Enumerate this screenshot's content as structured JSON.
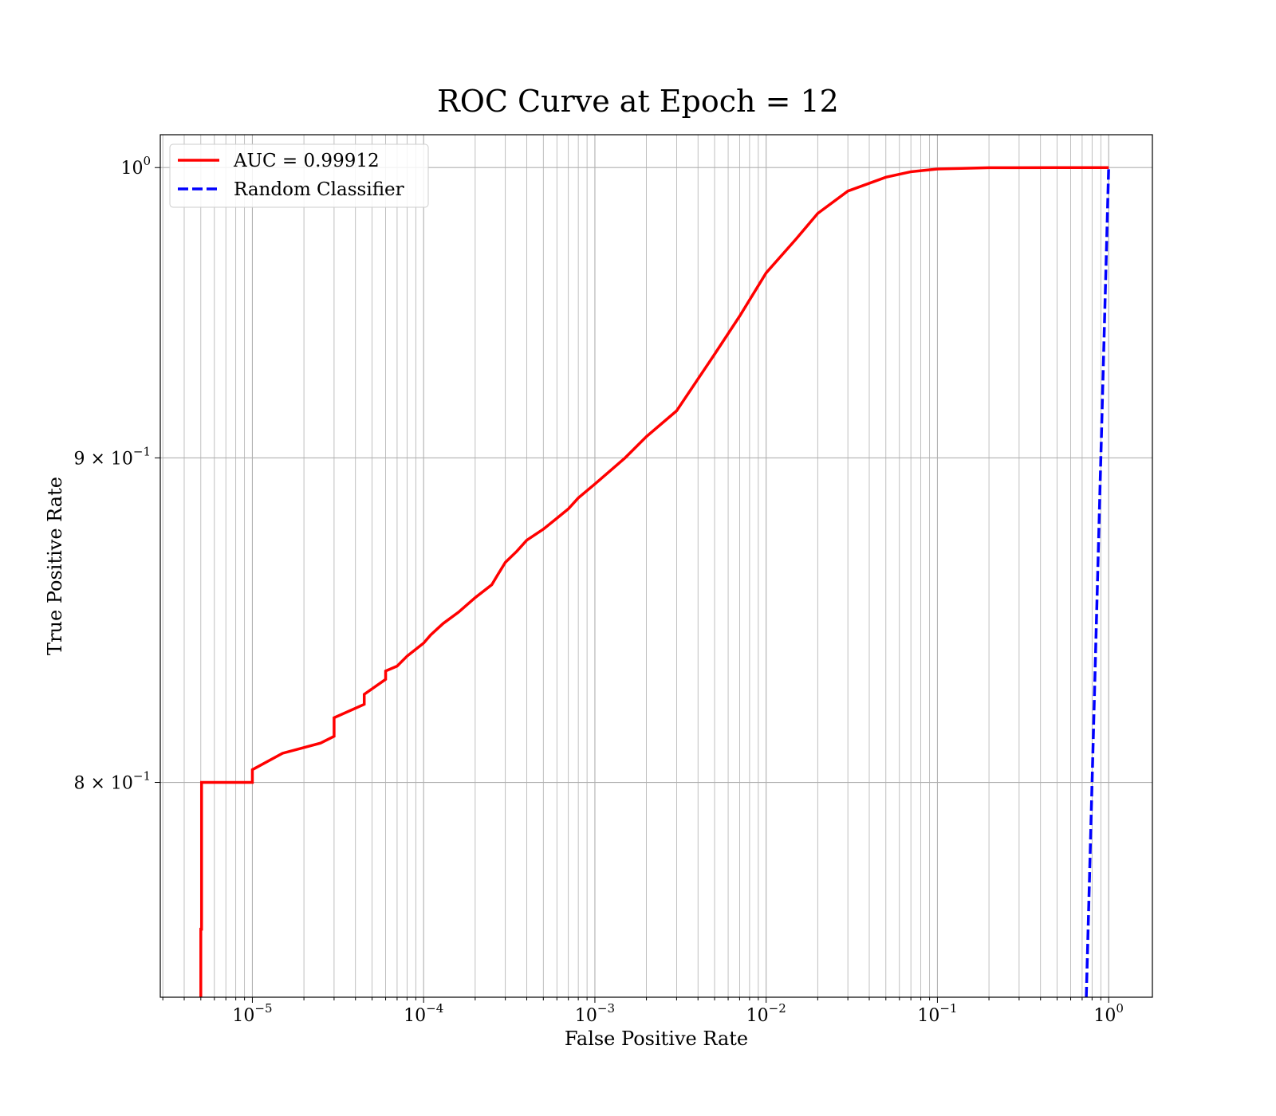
{
  "chart_data": {
    "type": "line",
    "title": "ROC Curve at Epoch = 12",
    "xlabel": "False Positive Rate",
    "ylabel": "True Positive Rate",
    "xscale": "log",
    "yscale": "log",
    "xlim": [
      2.9e-06,
      1.8
    ],
    "ylim": [
      0.74,
      1.012
    ],
    "grid": "on (major and minor)",
    "legend_position": "upper-left",
    "x_tick_labels": [
      {
        "base": "10",
        "exp": "−5",
        "value": 1e-05
      },
      {
        "base": "10",
        "exp": "−4",
        "value": 0.0001
      },
      {
        "base": "10",
        "exp": "−3",
        "value": 0.001
      },
      {
        "base": "10",
        "exp": "−2",
        "value": 0.01
      },
      {
        "base": "10",
        "exp": "−1",
        "value": 0.1
      },
      {
        "base": "10",
        "exp": "0",
        "value": 1
      }
    ],
    "y_tick_labels": [
      {
        "mant": "",
        "base": "10",
        "exp": "0",
        "value": 1.0
      },
      {
        "mant": "9 × ",
        "base": "10",
        "exp": "−1",
        "value": 0.9
      },
      {
        "mant": "8 × ",
        "base": "10",
        "exp": "−1",
        "value": 0.8
      }
    ],
    "series": [
      {
        "name": "AUC = 0.99912",
        "color": "#ff0000",
        "dash": "solid",
        "x": [
          5e-06,
          5e-06,
          5.05e-06,
          5.05e-06,
          1e-05,
          1e-05,
          1.5e-05,
          2.5e-05,
          3e-05,
          3e-05,
          4.5e-05,
          4.5e-05,
          6e-05,
          6e-05,
          7e-05,
          8e-05,
          0.0001,
          0.00011,
          0.00013,
          0.00016,
          0.0002,
          0.00025,
          0.00027,
          0.0003,
          0.00035,
          0.0004,
          0.0005,
          0.0006,
          0.0007,
          0.0008,
          0.001,
          0.0015,
          0.002,
          0.003,
          0.005,
          0.007,
          0.01,
          0.015,
          0.02,
          0.03,
          0.05,
          0.07,
          0.1,
          0.2,
          0.5,
          1.0
        ],
        "y": [
          0.74,
          0.7585,
          0.7585,
          0.8,
          0.8,
          0.8037,
          0.8085,
          0.8115,
          0.8135,
          0.819,
          0.823,
          0.826,
          0.8305,
          0.833,
          0.8345,
          0.8375,
          0.8415,
          0.844,
          0.8475,
          0.851,
          0.8555,
          0.8595,
          0.8625,
          0.8665,
          0.87,
          0.8735,
          0.877,
          0.8805,
          0.8835,
          0.887,
          0.8915,
          0.9,
          0.907,
          0.9155,
          0.9345,
          0.9475,
          0.9625,
          0.9745,
          0.9835,
          0.9915,
          0.9965,
          0.9985,
          0.9995,
          0.99995,
          1.0,
          1.0
        ]
      },
      {
        "name": "Random Classifier",
        "color": "#0000ff",
        "dash": "dashed",
        "x": [
          0.74,
          1.0
        ],
        "y": [
          0.74,
          1.0
        ]
      }
    ]
  }
}
